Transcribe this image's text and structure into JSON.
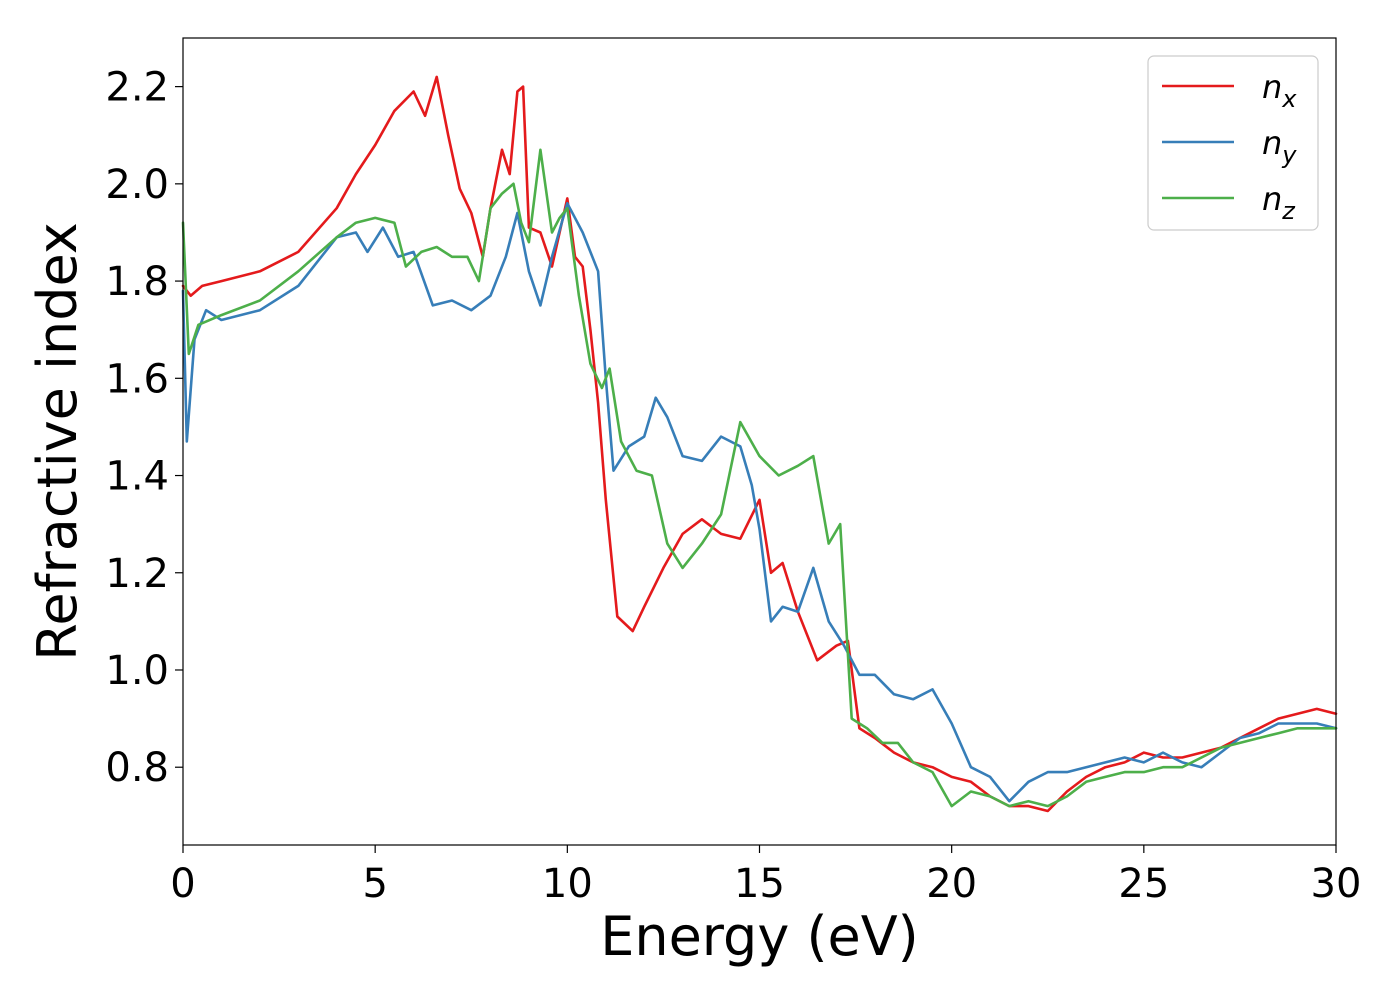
{
  "chart_data": {
    "type": "line",
    "title": "",
    "xlabel": "Energy (eV)",
    "ylabel": "Refractive index",
    "xlim": [
      0,
      30
    ],
    "ylim": [
      0.64,
      2.3
    ],
    "xticks": [
      0,
      5,
      10,
      15,
      20,
      25,
      30
    ],
    "xtick_labels": [
      "0",
      "5",
      "10",
      "15",
      "20",
      "25",
      "30"
    ],
    "yticks": [
      0.8,
      1.0,
      1.2,
      1.4,
      1.6,
      1.8,
      2.0,
      2.2
    ],
    "ytick_labels": [
      "0.8",
      "1.0",
      "1.2",
      "1.4",
      "1.6",
      "1.8",
      "2.0",
      "2.2"
    ],
    "grid": false,
    "legend_position": "top-right",
    "series": [
      {
        "name": "n",
        "subscript": "x",
        "color": "#e41a1c",
        "x": [
          0,
          0.2,
          0.5,
          1,
          2,
          3,
          4,
          4.5,
          5,
          5.5,
          6,
          6.3,
          6.6,
          6.9,
          7.2,
          7.5,
          7.8,
          8.0,
          8.3,
          8.5,
          8.7,
          8.85,
          9.0,
          9.3,
          9.6,
          9.8,
          10.0,
          10.2,
          10.4,
          10.6,
          10.8,
          11.0,
          11.3,
          11.7,
          12.0,
          12.5,
          13.0,
          13.5,
          14.0,
          14.5,
          15.0,
          15.3,
          15.6,
          16.0,
          16.5,
          17.0,
          17.3,
          17.6,
          18.0,
          18.5,
          19.0,
          19.5,
          20.0,
          20.5,
          21.0,
          21.5,
          22.0,
          22.5,
          23.0,
          23.5,
          24.0,
          24.5,
          25.0,
          25.5,
          26.0,
          26.5,
          27.0,
          27.5,
          28.0,
          28.5,
          29.0,
          29.5,
          30.0
        ],
        "y": [
          1.79,
          1.77,
          1.79,
          1.8,
          1.82,
          1.86,
          1.95,
          2.02,
          2.08,
          2.15,
          2.19,
          2.14,
          2.22,
          2.1,
          1.99,
          1.94,
          1.85,
          1.95,
          2.07,
          2.02,
          2.19,
          2.2,
          1.91,
          1.9,
          1.83,
          1.9,
          1.97,
          1.85,
          1.83,
          1.7,
          1.55,
          1.35,
          1.11,
          1.08,
          1.13,
          1.21,
          1.28,
          1.31,
          1.28,
          1.27,
          1.35,
          1.2,
          1.22,
          1.12,
          1.02,
          1.05,
          1.06,
          0.88,
          0.86,
          0.83,
          0.81,
          0.8,
          0.78,
          0.77,
          0.74,
          0.72,
          0.72,
          0.71,
          0.75,
          0.78,
          0.8,
          0.81,
          0.83,
          0.82,
          0.82,
          0.83,
          0.84,
          0.86,
          0.88,
          0.9,
          0.91,
          0.92,
          0.91
        ]
      },
      {
        "name": "n",
        "subscript": "y",
        "color": "#377eb8",
        "x": [
          0,
          0.1,
          0.3,
          0.6,
          1,
          2,
          3,
          4,
          4.5,
          4.8,
          5.2,
          5.6,
          6.0,
          6.5,
          7.0,
          7.5,
          8.0,
          8.4,
          8.7,
          9.0,
          9.3,
          9.6,
          10.0,
          10.4,
          10.8,
          11.0,
          11.2,
          11.6,
          12.0,
          12.3,
          12.6,
          13.0,
          13.5,
          14.0,
          14.5,
          14.8,
          15.0,
          15.3,
          15.6,
          16.0,
          16.4,
          16.8,
          17.2,
          17.6,
          18.0,
          18.5,
          19.0,
          19.5,
          20.0,
          20.5,
          21.0,
          21.5,
          22.0,
          22.5,
          23.0,
          23.5,
          24.0,
          24.5,
          25.0,
          25.5,
          26.0,
          26.5,
          27.0,
          27.5,
          28.0,
          28.5,
          29.0,
          29.5,
          30.0
        ],
        "y": [
          1.78,
          1.47,
          1.68,
          1.74,
          1.72,
          1.74,
          1.79,
          1.89,
          1.9,
          1.86,
          1.91,
          1.85,
          1.86,
          1.75,
          1.76,
          1.74,
          1.77,
          1.85,
          1.94,
          1.82,
          1.75,
          1.85,
          1.96,
          1.9,
          1.82,
          1.6,
          1.41,
          1.46,
          1.48,
          1.56,
          1.52,
          1.44,
          1.43,
          1.48,
          1.46,
          1.38,
          1.29,
          1.1,
          1.13,
          1.12,
          1.21,
          1.1,
          1.05,
          0.99,
          0.99,
          0.95,
          0.94,
          0.96,
          0.89,
          0.8,
          0.78,
          0.73,
          0.77,
          0.79,
          0.79,
          0.8,
          0.81,
          0.82,
          0.81,
          0.83,
          0.81,
          0.8,
          0.83,
          0.86,
          0.87,
          0.89,
          0.89,
          0.89,
          0.88
        ]
      },
      {
        "name": "n",
        "subscript": "z",
        "color": "#4daf4a",
        "x": [
          0,
          0.15,
          0.4,
          1,
          2,
          3,
          4,
          4.5,
          5,
          5.5,
          5.8,
          6.2,
          6.6,
          7.0,
          7.4,
          7.7,
          8.0,
          8.3,
          8.6,
          8.8,
          9.0,
          9.3,
          9.6,
          9.8,
          10.0,
          10.3,
          10.6,
          10.9,
          11.1,
          11.4,
          11.8,
          12.2,
          12.6,
          13.0,
          13.5,
          14.0,
          14.5,
          15.0,
          15.5,
          16.0,
          16.4,
          16.8,
          17.1,
          17.4,
          17.8,
          18.2,
          18.6,
          19.0,
          19.5,
          20.0,
          20.5,
          21.0,
          21.5,
          22.0,
          22.5,
          23.0,
          23.5,
          24.0,
          24.5,
          25.0,
          25.5,
          26.0,
          26.5,
          27.0,
          27.5,
          28.0,
          28.5,
          29.0,
          29.5,
          30.0
        ],
        "y": [
          1.92,
          1.65,
          1.71,
          1.73,
          1.76,
          1.82,
          1.89,
          1.92,
          1.93,
          1.92,
          1.83,
          1.86,
          1.87,
          1.85,
          1.85,
          1.8,
          1.95,
          1.98,
          2.0,
          1.92,
          1.88,
          2.07,
          1.9,
          1.93,
          1.95,
          1.77,
          1.63,
          1.58,
          1.62,
          1.47,
          1.41,
          1.4,
          1.26,
          1.21,
          1.26,
          1.32,
          1.51,
          1.44,
          1.4,
          1.42,
          1.44,
          1.26,
          1.3,
          0.9,
          0.88,
          0.85,
          0.85,
          0.81,
          0.79,
          0.72,
          0.75,
          0.74,
          0.72,
          0.73,
          0.72,
          0.74,
          0.77,
          0.78,
          0.79,
          0.79,
          0.8,
          0.8,
          0.82,
          0.84,
          0.85,
          0.86,
          0.87,
          0.88,
          0.88,
          0.88
        ]
      }
    ]
  }
}
